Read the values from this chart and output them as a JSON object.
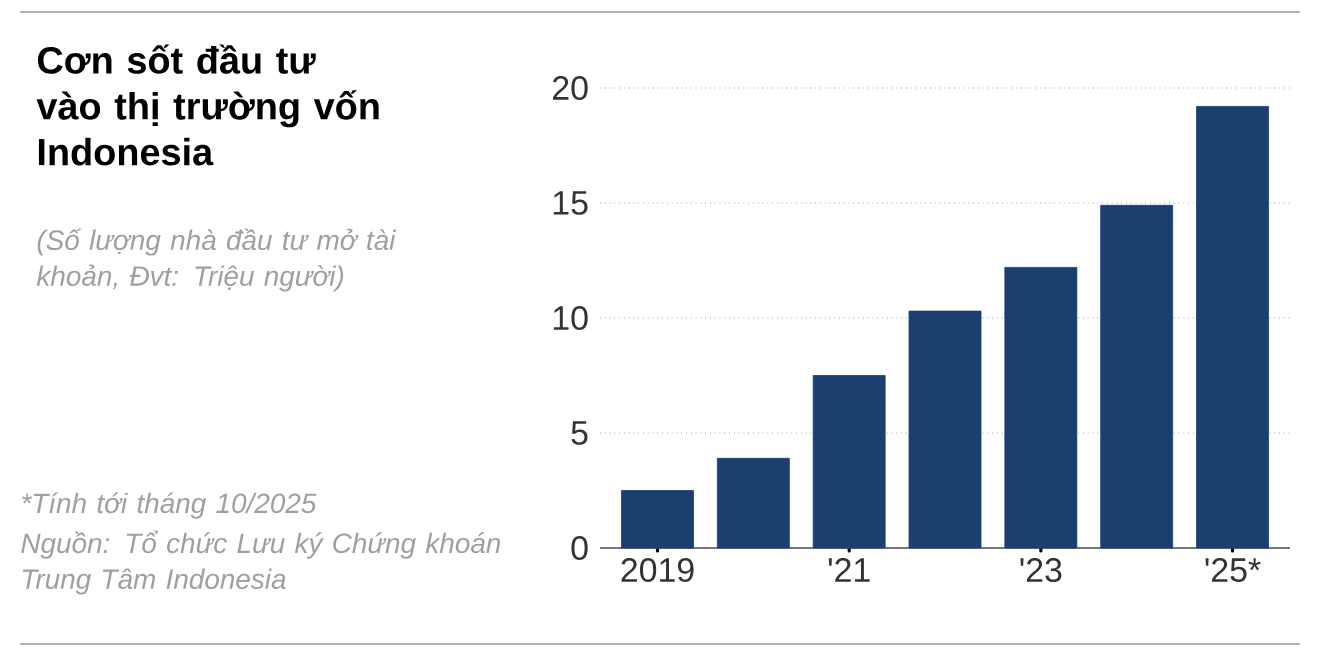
{
  "chart_data": {
    "type": "bar",
    "title": "Cơn sốt đầu tư vào thị trường vốn Indonesia",
    "subtitle": "(Số lượng nhà đầu tư mở tài khoản, Đvt: Triệu người)",
    "categories": [
      "2019",
      null,
      "'21",
      null,
      "'23",
      null,
      "'25*"
    ],
    "values": [
      2.5,
      3.9,
      7.5,
      10.3,
      12.2,
      14.9,
      19.2
    ],
    "color": "#1b3f6e",
    "ylim": [
      0,
      20
    ],
    "yticks": [
      0,
      5,
      10,
      15,
      20
    ],
    "grid": "y",
    "annotations": [
      "*Tính tới tháng 10/2025",
      "Nguồn: Tổ chức Lưu ký Chứng khoán Trung Tâm Indonesia"
    ]
  }
}
